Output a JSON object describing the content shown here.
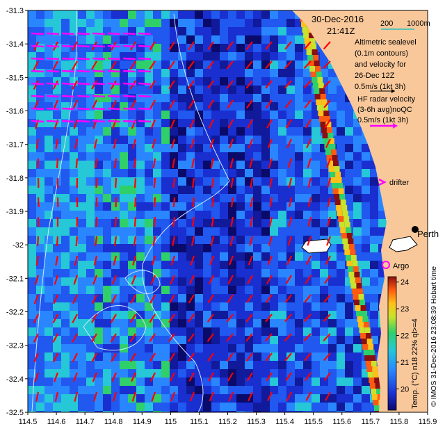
{
  "header": {
    "date": "30-Dec-2016",
    "time": "21:41Z",
    "scale_label_200": "200",
    "scale_label_1000": "1000m"
  },
  "annotations": {
    "altimetric_lines": [
      "Altimetric sealevel",
      "(0.1m contours)",
      "and velocity for",
      "26-Dec 12Z",
      "0.5m/s (1kt 3h)"
    ],
    "hf_lines": [
      "HF radar velocity",
      "(3-6h avg)noQC",
      "0.5m/s (1kt 3h)"
    ],
    "drifter": "drifter",
    "argo": "Argo",
    "city": "Perth",
    "city_vertical": "Hobart tim",
    "credit": "© IMOS 31-Dec-2016 23:08:39 Hobart time"
  },
  "colorbar": {
    "label": "Temp. (°C) n18 22% ql>=4",
    "min": 19.2,
    "max": 24.2,
    "ticks": [
      "20",
      "21",
      "22",
      "23",
      "24"
    ]
  },
  "axes": {
    "x_ticks": [
      "114.5",
      "114.6",
      "114.7",
      "114.8",
      "114.9",
      "115",
      "115.1",
      "115.2",
      "115.3",
      "115.4",
      "115.5",
      "115.6",
      "115.7",
      "115.8",
      "115.9"
    ],
    "y_ticks": [
      "-31.3",
      "-31.4",
      "-31.5",
      "-31.6",
      "-31.7",
      "-31.8",
      "-31.9",
      "-32",
      "-32.1",
      "-32.2",
      "-32.3",
      "-32.4",
      "-32.5"
    ],
    "lon_range": [
      114.5,
      115.9
    ],
    "lat_range": [
      -32.5,
      -31.3
    ]
  },
  "colors": {
    "land": "#f9c89a",
    "hf_arrow": "#ff00ff",
    "alt_arrow": "#ff0000",
    "contour": "#cfe8ff",
    "argo": "#ff00ff"
  }
}
